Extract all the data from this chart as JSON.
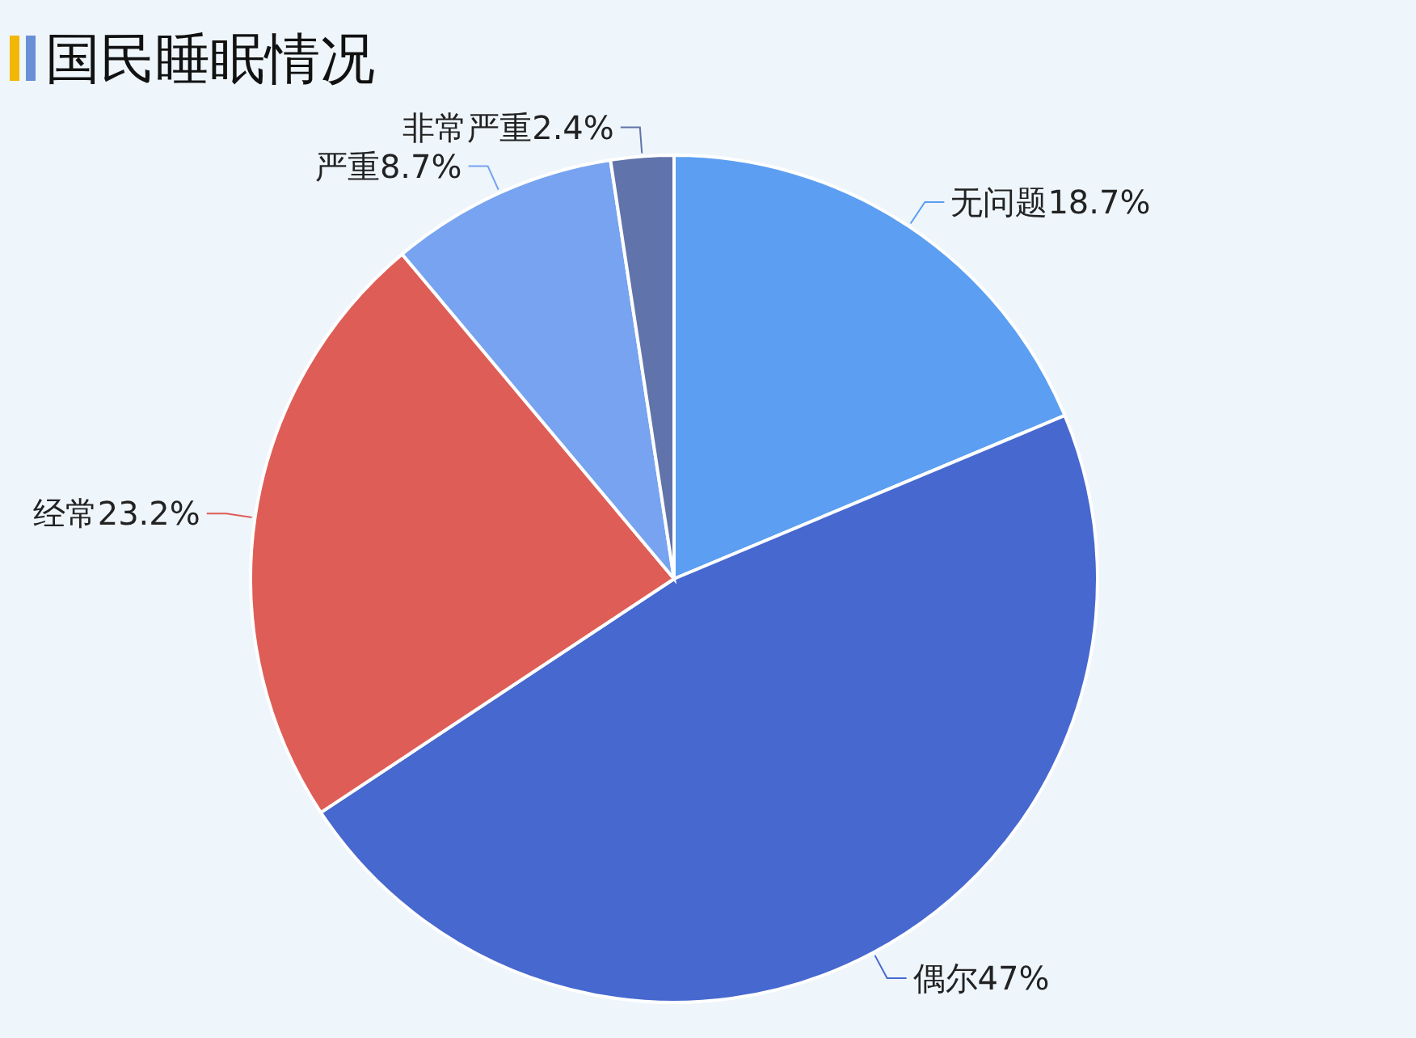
{
  "chart_data": {
    "type": "pie",
    "title": "国民睡眠情况",
    "categories": [
      "无问题",
      "偶尔",
      "经常",
      "严重",
      "非常严重"
    ],
    "values": [
      18.7,
      47,
      23.2,
      8.7,
      2.4
    ],
    "colors": [
      "#5b9ef2",
      "#4668cf",
      "#de5d57",
      "#77a3f0",
      "#6073aa"
    ],
    "value_labels": [
      "18.7%",
      "47%",
      "23.2%",
      "8.7%",
      "2.4%"
    ]
  }
}
